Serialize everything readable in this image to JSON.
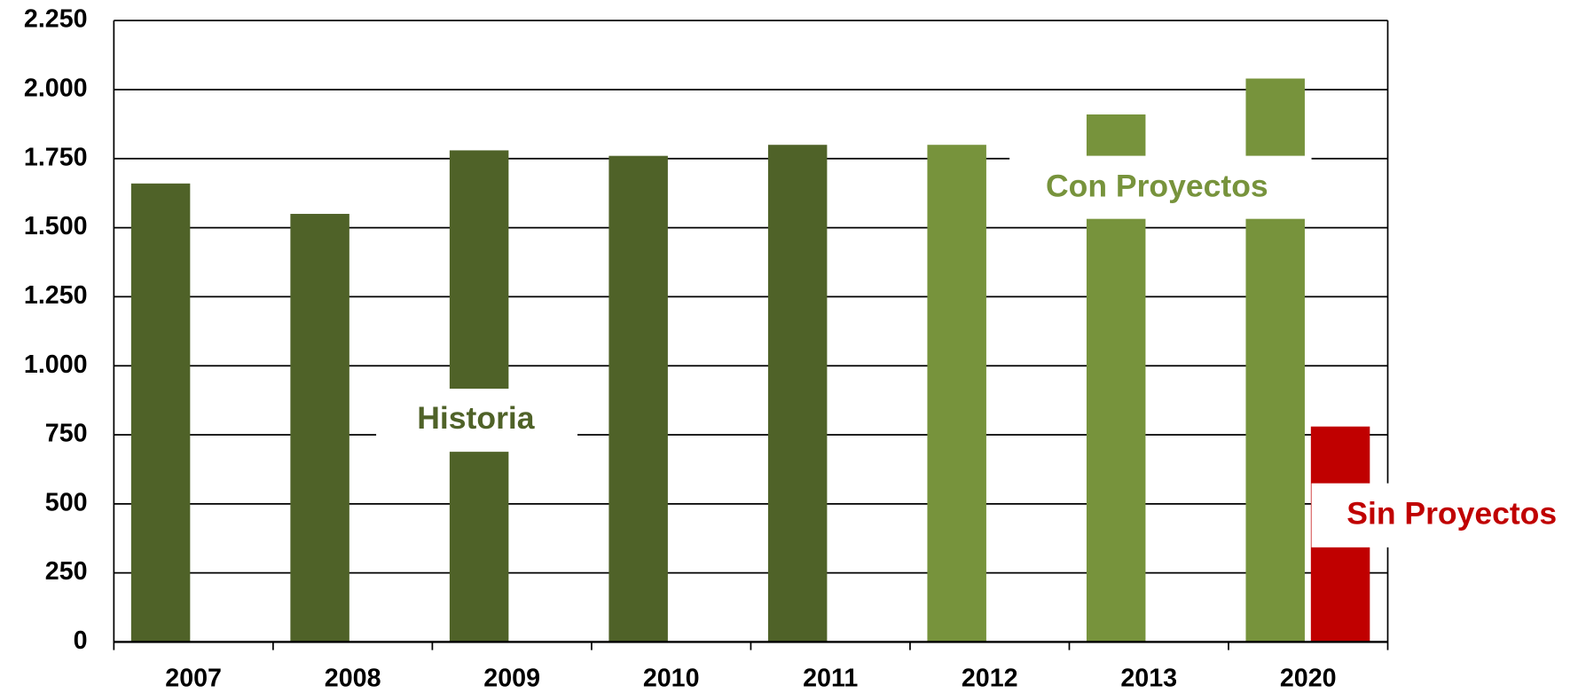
{
  "chart_data": {
    "type": "bar",
    "categories": [
      "2007",
      "2008",
      "2009",
      "2010",
      "2011",
      "2012",
      "2013",
      "2020"
    ],
    "series": [
      {
        "name": "Historia",
        "color": "#4f6228",
        "values": [
          1660,
          1550,
          1780,
          1760,
          1800,
          null,
          null,
          null
        ]
      },
      {
        "name": "Con Proyectos",
        "color": "#77933c",
        "values": [
          null,
          null,
          null,
          null,
          null,
          1800,
          1910,
          2040
        ]
      },
      {
        "name": "Sin Proyectos",
        "color": "#c00000",
        "values": [
          null,
          null,
          null,
          null,
          null,
          null,
          null,
          780
        ]
      }
    ],
    "ylim": [
      0,
      2250
    ],
    "yticks": [
      0,
      250,
      500,
      750,
      {
        "value": 1000,
        "label": "1.000"
      },
      {
        "value": 1250,
        "label": "1.250"
      },
      {
        "value": 1500,
        "label": "1.500"
      },
      {
        "value": 1750,
        "label": "1.750"
      },
      {
        "value": 2000,
        "label": "2.000"
      },
      {
        "value": 2250,
        "label": "2.250"
      }
    ],
    "grid": true
  }
}
